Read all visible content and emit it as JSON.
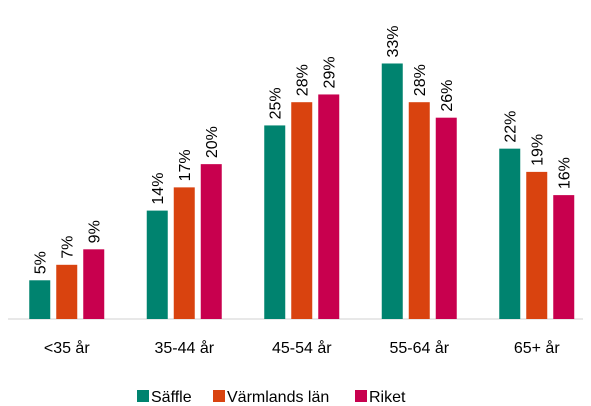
{
  "chart_data": {
    "type": "bar",
    "categories": [
      "<35 år",
      "35-44 år",
      "45-54 år",
      "55-64 år",
      "65+ år"
    ],
    "series": [
      {
        "name": "Säffle",
        "color": "#00836f",
        "values": [
          5,
          14,
          25,
          33,
          22
        ],
        "value_labels": [
          "5%",
          "14%",
          "25%",
          "33%",
          "22%"
        ]
      },
      {
        "name": "Värmlands län",
        "color": "#d9430f",
        "values": [
          7,
          17,
          28,
          28,
          19
        ],
        "value_labels": [
          "7%",
          "17%",
          "28%",
          "28%",
          "19%"
        ]
      },
      {
        "name": "Riket",
        "color": "#c8004e",
        "values": [
          9,
          20,
          29,
          26,
          16
        ],
        "value_labels": [
          "9%",
          "20%",
          "29%",
          "26%",
          "16%"
        ]
      }
    ],
    "ylim": [
      0,
      35
    ],
    "legend": "bottom"
  }
}
